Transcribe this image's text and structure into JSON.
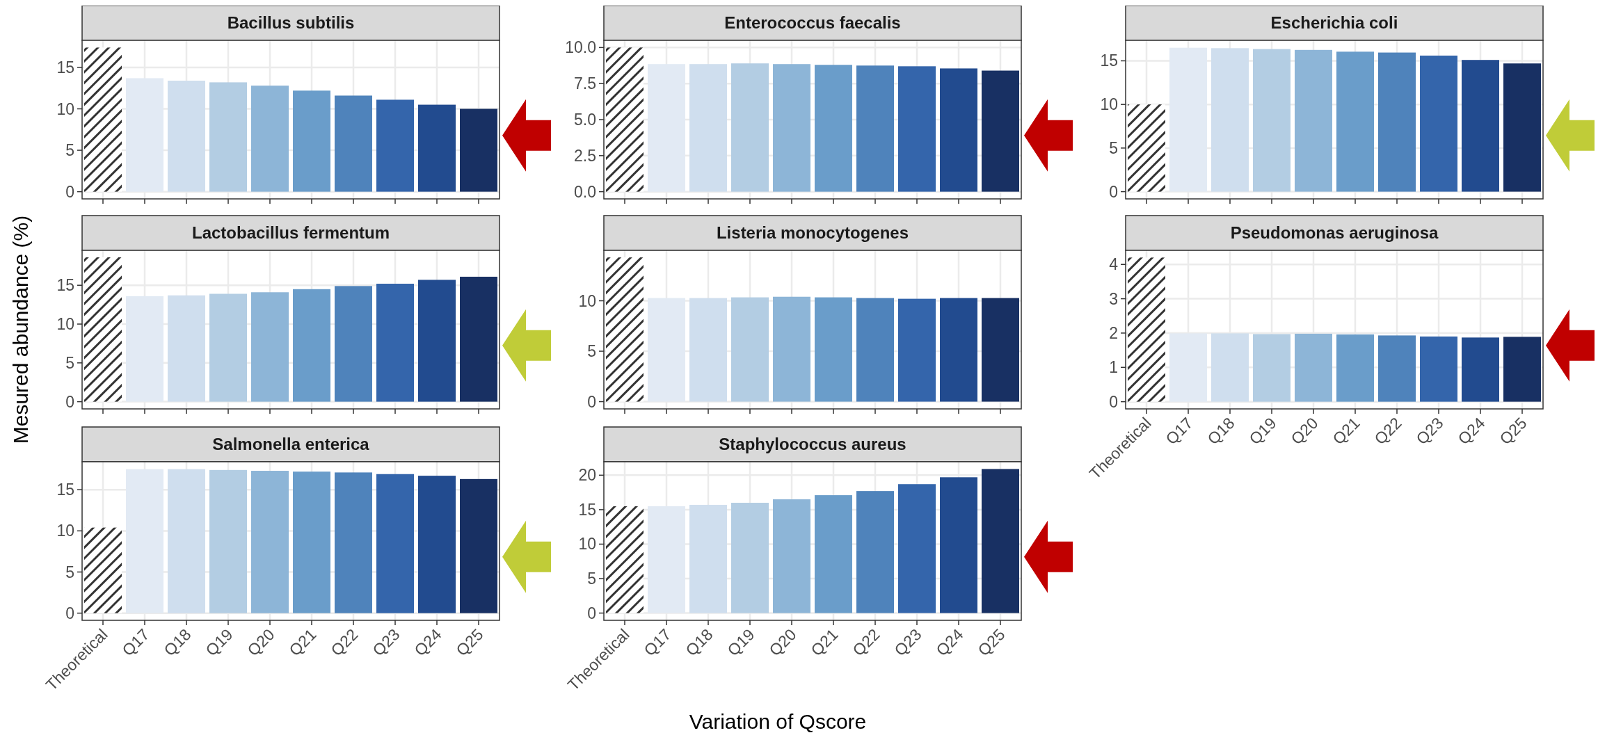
{
  "chart_data": [
    {
      "type": "bar",
      "title": "Bacillus subtilis",
      "categories": [
        null,
        null,
        null,
        null,
        null,
        null,
        null,
        null,
        null,
        null
      ],
      "values": [
        17.4,
        13.7,
        13.4,
        13.2,
        12.8,
        12.2,
        11.6,
        11.1,
        10.5,
        10.0
      ],
      "colors": [
        "#333333",
        "#e2eaf4",
        "#cfdeee",
        "#b3cde3",
        "#8db5d7",
        "#6a9dca",
        "#4f83bb",
        "#3465ab",
        "#224b8f",
        "#183063"
      ],
      "ylim": [
        -0.87,
        18.27
      ],
      "yticks": [
        0,
        5,
        10,
        15
      ],
      "grid": true,
      "tick_labels": "y"
    },
    {
      "type": "bar",
      "title": "Enterococcus faecalis",
      "categories": [
        null,
        null,
        null,
        null,
        null,
        null,
        null,
        null,
        null,
        null
      ],
      "values": [
        10.0,
        8.85,
        8.85,
        8.9,
        8.85,
        8.8,
        8.75,
        8.7,
        8.55,
        8.4
      ],
      "colors": [
        "#333333",
        "#e2eaf4",
        "#cfdeee",
        "#b3cde3",
        "#8db5d7",
        "#6a9dca",
        "#4f83bb",
        "#3465ab",
        "#224b8f",
        "#183063"
      ],
      "ylim": [
        -0.5,
        10.5
      ],
      "yticks": [
        {
          "value": 0,
          "label": "0.0"
        },
        {
          "value": 2.5,
          "label": "2.5"
        },
        {
          "value": 5,
          "label": "5.0"
        },
        {
          "value": 7.5,
          "label": "7.5"
        },
        {
          "value": 10,
          "label": "10.0"
        }
      ],
      "grid": true,
      "tick_labels": "y"
    },
    {
      "type": "bar",
      "title": "Escherichia coli",
      "categories": [
        null,
        null,
        null,
        null,
        null,
        null,
        null,
        null,
        null,
        null
      ],
      "values": [
        10.0,
        16.5,
        16.45,
        16.35,
        16.25,
        16.05,
        15.95,
        15.6,
        15.1,
        14.7
      ],
      "colors": [
        "#333333",
        "#e2eaf4",
        "#cfdeee",
        "#b3cde3",
        "#8db5d7",
        "#6a9dca",
        "#4f83bb",
        "#3465ab",
        "#224b8f",
        "#183063"
      ],
      "ylim": [
        -0.83,
        17.35
      ],
      "yticks": [
        0,
        5,
        10,
        15
      ],
      "grid": true,
      "tick_labels": "y"
    },
    {
      "type": "bar",
      "title": "Lactobacillus fermentum",
      "categories": [
        null,
        null,
        null,
        null,
        null,
        null,
        null,
        null,
        null,
        null
      ],
      "values": [
        18.6,
        13.6,
        13.7,
        13.9,
        14.1,
        14.5,
        14.9,
        15.2,
        15.7,
        16.1
      ],
      "colors": [
        "#333333",
        "#e2eaf4",
        "#cfdeee",
        "#b3cde3",
        "#8db5d7",
        "#6a9dca",
        "#4f83bb",
        "#3465ab",
        "#224b8f",
        "#183063"
      ],
      "ylim": [
        -0.93,
        19.5
      ],
      "yticks": [
        0,
        5,
        10,
        15
      ],
      "grid": true,
      "tick_labels": "y",
      "ylabel": "Mesured abundance (%)"
    },
    {
      "type": "bar",
      "title": "Listeria monocytogenes",
      "categories": [
        null,
        null,
        null,
        null,
        null,
        null,
        null,
        null,
        null,
        null
      ],
      "values": [
        14.3,
        10.27,
        10.27,
        10.34,
        10.4,
        10.34,
        10.27,
        10.2,
        10.27,
        10.27
      ],
      "colors": [
        "#333333",
        "#e2eaf4",
        "#cfdeee",
        "#b3cde3",
        "#8db5d7",
        "#6a9dca",
        "#4f83bb",
        "#3465ab",
        "#224b8f",
        "#183063"
      ],
      "ylim": [
        -0.72,
        15.0
      ],
      "yticks": [
        0,
        5,
        10
      ],
      "grid": true,
      "tick_labels": "y"
    },
    {
      "type": "bar",
      "title": "Pseudomonas aeruginosa",
      "categories": [
        "Theoretical",
        "Q17",
        "Q18",
        "Q19",
        "Q20",
        "Q21",
        "Q22",
        "Q23",
        "Q24",
        "Q25"
      ],
      "values": [
        4.2,
        1.99,
        1.99,
        1.97,
        1.98,
        1.96,
        1.93,
        1.9,
        1.87,
        1.89
      ],
      "colors": [
        "#333333",
        "#e2eaf4",
        "#cfdeee",
        "#b3cde3",
        "#8db5d7",
        "#6a9dca",
        "#4f83bb",
        "#3465ab",
        "#224b8f",
        "#183063"
      ],
      "ylim": [
        -0.21,
        4.41
      ],
      "yticks": [
        0,
        1,
        2,
        3,
        4
      ],
      "grid": true
    },
    {
      "type": "bar",
      "title": "Salmonella enterica",
      "categories": [
        "Theoretical",
        "Q17",
        "Q18",
        "Q19",
        "Q20",
        "Q21",
        "Q22",
        "Q23",
        "Q24",
        "Q25"
      ],
      "values": [
        10.4,
        17.5,
        17.5,
        17.4,
        17.3,
        17.2,
        17.1,
        16.9,
        16.7,
        16.3
      ],
      "colors": [
        "#333333",
        "#e2eaf4",
        "#cfdeee",
        "#b3cde3",
        "#8db5d7",
        "#6a9dca",
        "#4f83bb",
        "#3465ab",
        "#224b8f",
        "#183063"
      ],
      "ylim": [
        -0.87,
        18.4
      ],
      "yticks": [
        0,
        5,
        10,
        15
      ],
      "grid": true
    },
    {
      "type": "bar",
      "title": "Staphylococcus aureus",
      "categories": [
        "Theoretical",
        "Q17",
        "Q18",
        "Q19",
        "Q20",
        "Q21",
        "Q22",
        "Q23",
        "Q24",
        "Q25"
      ],
      "values": [
        15.5,
        15.5,
        15.7,
        16.0,
        16.5,
        17.1,
        17.7,
        18.7,
        19.7,
        20.9
      ],
      "colors": [
        "#333333",
        "#e2eaf4",
        "#cfdeee",
        "#b3cde3",
        "#8db5d7",
        "#6a9dca",
        "#4f83bb",
        "#3465ab",
        "#224b8f",
        "#183063"
      ],
      "ylim": [
        -1.05,
        21.95
      ],
      "yticks": [
        0,
        5,
        10,
        15,
        20
      ],
      "grid": true,
      "xlabel": "Variation of Qscore"
    }
  ]
}
